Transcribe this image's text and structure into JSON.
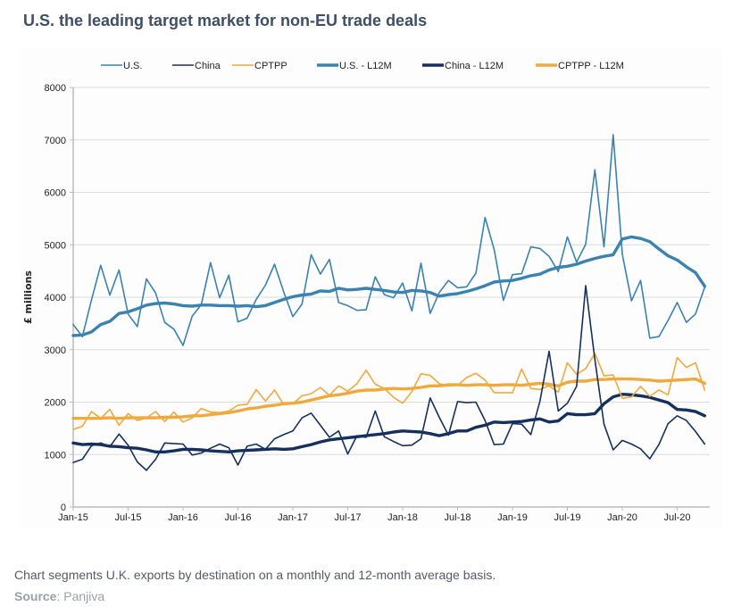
{
  "title": "U.S. the leading target market for non-EU trade deals",
  "caption": "Chart segments U.K. exports by destination on a monthly and 12-month average basis.",
  "source_label": "Source",
  "source_value": ": Panjiva",
  "chart_data": {
    "type": "line",
    "title": "U.S. the leading target market for non-EU trade deals",
    "xlabel": "",
    "ylabel": "£ millions",
    "ylim": [
      0,
      8000
    ],
    "yticks": [
      0,
      1000,
      2000,
      3000,
      4000,
      5000,
      6000,
      7000,
      8000
    ],
    "xtick_labels": [
      "Jan-15",
      "Jul-15",
      "Jan-16",
      "Jul-16",
      "Jan-17",
      "Jul-17",
      "Jan-18",
      "Jul-18",
      "Jan-19",
      "Jul-19",
      "Jan-20",
      "Jul-20"
    ],
    "grid": true,
    "legend_position": "top",
    "start": "Jan-15",
    "series": [
      {
        "name": "U.S.",
        "color": "#3a82b0",
        "width": 1.6,
        "values": [
          3480,
          3250,
          3950,
          4610,
          4040,
          4520,
          3680,
          3440,
          4350,
          4080,
          3520,
          3390,
          3080,
          3640,
          3860,
          4660,
          3990,
          4420,
          3530,
          3600,
          3960,
          4230,
          4630,
          4100,
          3630,
          3870,
          4810,
          4440,
          4720,
          3900,
          3840,
          3750,
          3760,
          4390,
          4050,
          3990,
          4270,
          3740,
          4650,
          3690,
          4090,
          4320,
          4180,
          4200,
          4460,
          5520,
          4910,
          3940,
          4430,
          4450,
          4960,
          4930,
          4780,
          4490,
          5150,
          4670,
          5010,
          6430,
          4960,
          7100,
          4820,
          3930,
          4320,
          3220,
          3250,
          3560,
          3900,
          3520,
          3680,
          4190
        ]
      },
      {
        "name": "China",
        "color": "#16305e",
        "width": 1.6,
        "values": [
          850,
          910,
          1170,
          1220,
          1150,
          1390,
          1180,
          860,
          700,
          910,
          1220,
          1210,
          1200,
          990,
          1030,
          1120,
          1200,
          1130,
          800,
          1160,
          1200,
          1100,
          1300,
          1380,
          1450,
          1700,
          1790,
          1560,
          1330,
          1450,
          1010,
          1360,
          1330,
          1830,
          1340,
          1250,
          1170,
          1180,
          1300,
          2080,
          1710,
          1370,
          2010,
          1990,
          2000,
          1650,
          1190,
          1200,
          1590,
          1580,
          1380,
          2020,
          2970,
          1830,
          1980,
          2300,
          4220,
          2810,
          1580,
          1090,
          1270,
          1200,
          1110,
          920,
          1190,
          1590,
          1740,
          1650,
          1440,
          1200
        ]
      },
      {
        "name": "CPTPP",
        "color": "#f0a93c",
        "width": 1.6,
        "values": [
          1480,
          1540,
          1820,
          1690,
          1860,
          1560,
          1780,
          1650,
          1700,
          1820,
          1630,
          1810,
          1620,
          1700,
          1880,
          1810,
          1800,
          1830,
          1940,
          1960,
          2240,
          2020,
          2230,
          1950,
          1970,
          2120,
          2160,
          2280,
          2130,
          2310,
          2210,
          2350,
          2610,
          2340,
          2260,
          2090,
          1980,
          2200,
          2540,
          2510,
          2350,
          2310,
          2320,
          2470,
          2550,
          2420,
          2180,
          2180,
          2180,
          2630,
          2260,
          2240,
          2310,
          2190,
          2750,
          2530,
          2640,
          2930,
          2500,
          2520,
          2070,
          2100,
          2300,
          2110,
          2230,
          2140,
          2850,
          2660,
          2750,
          2230
        ]
      },
      {
        "name": "U.S. - L12M",
        "color": "#3a82b0",
        "width": 3.4,
        "values": [
          3270,
          3280,
          3340,
          3480,
          3540,
          3690,
          3720,
          3780,
          3850,
          3880,
          3890,
          3870,
          3840,
          3830,
          3850,
          3850,
          3840,
          3840,
          3830,
          3840,
          3820,
          3840,
          3900,
          3960,
          4010,
          4040,
          4060,
          4120,
          4110,
          4170,
          4140,
          4150,
          4170,
          4150,
          4130,
          4100,
          4090,
          4130,
          4120,
          4090,
          4020,
          4050,
          4070,
          4110,
          4160,
          4220,
          4290,
          4310,
          4320,
          4360,
          4410,
          4440,
          4520,
          4570,
          4590,
          4630,
          4690,
          4740,
          4780,
          4810,
          5110,
          5150,
          5120,
          5060,
          4920,
          4790,
          4710,
          4580,
          4470,
          4210
        ]
      },
      {
        "name": "China - L12M",
        "color": "#16305e",
        "width": 3.4,
        "values": [
          1220,
          1190,
          1200,
          1190,
          1160,
          1150,
          1130,
          1120,
          1090,
          1050,
          1050,
          1070,
          1100,
          1100,
          1090,
          1070,
          1060,
          1050,
          1070,
          1080,
          1090,
          1100,
          1110,
          1100,
          1110,
          1150,
          1190,
          1240,
          1280,
          1300,
          1320,
          1340,
          1360,
          1380,
          1400,
          1430,
          1450,
          1440,
          1430,
          1400,
          1360,
          1400,
          1450,
          1450,
          1520,
          1560,
          1620,
          1610,
          1620,
          1630,
          1660,
          1680,
          1620,
          1640,
          1780,
          1760,
          1760,
          1780,
          1970,
          2100,
          2150,
          2140,
          2120,
          2090,
          2040,
          1990,
          1860,
          1850,
          1820,
          1740
        ]
      },
      {
        "name": "CPTPP - L12M",
        "color": "#f0a93c",
        "width": 3.4,
        "values": [
          1690,
          1690,
          1690,
          1690,
          1700,
          1690,
          1700,
          1700,
          1700,
          1700,
          1710,
          1710,
          1720,
          1740,
          1740,
          1760,
          1780,
          1800,
          1830,
          1870,
          1890,
          1920,
          1940,
          1970,
          1980,
          2000,
          2040,
          2080,
          2120,
          2140,
          2170,
          2210,
          2230,
          2230,
          2250,
          2260,
          2250,
          2260,
          2280,
          2310,
          2310,
          2330,
          2330,
          2320,
          2330,
          2330,
          2320,
          2330,
          2330,
          2320,
          2340,
          2360,
          2340,
          2310,
          2380,
          2400,
          2400,
          2430,
          2430,
          2440,
          2440,
          2440,
          2430,
          2420,
          2400,
          2410,
          2420,
          2430,
          2440,
          2360
        ]
      }
    ]
  }
}
